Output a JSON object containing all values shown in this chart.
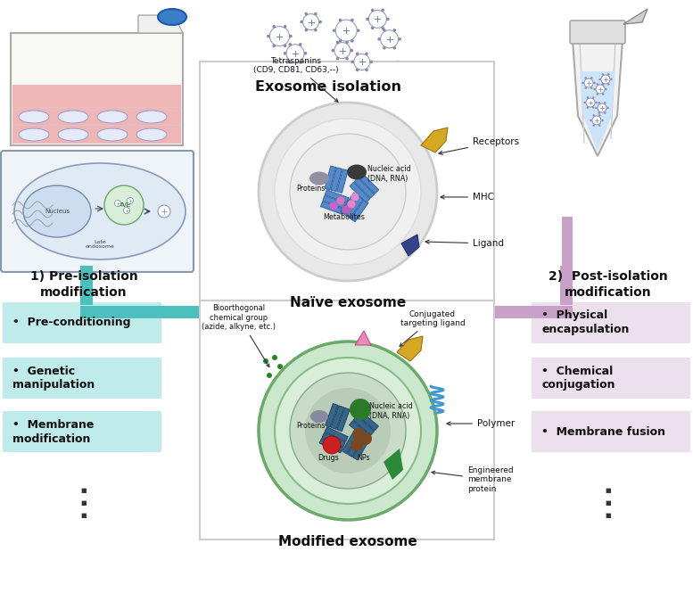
{
  "bg_color": "#ffffff",
  "teal": "#4CBFBF",
  "teal_light": "#C0EBEB",
  "purple": "#C8A0C8",
  "purple_light": "#EDE0ED",
  "blue_arrow": "#80C8E8",
  "left_title": "1) Pre-isolation\nmodification",
  "left_items": [
    "Pre-conditioning",
    "Genetic\nmanipulation",
    "Membrane\nmodification"
  ],
  "right_title": "2)  Post-isolation\nmodification",
  "right_items": [
    "Physical\nencapsulation",
    "Chemical\nconjugation",
    "Membrane fusion"
  ],
  "naive_label": "Naïve exosome",
  "modified_label": "Modified exosome",
  "iso_label": "Exosome isolation"
}
